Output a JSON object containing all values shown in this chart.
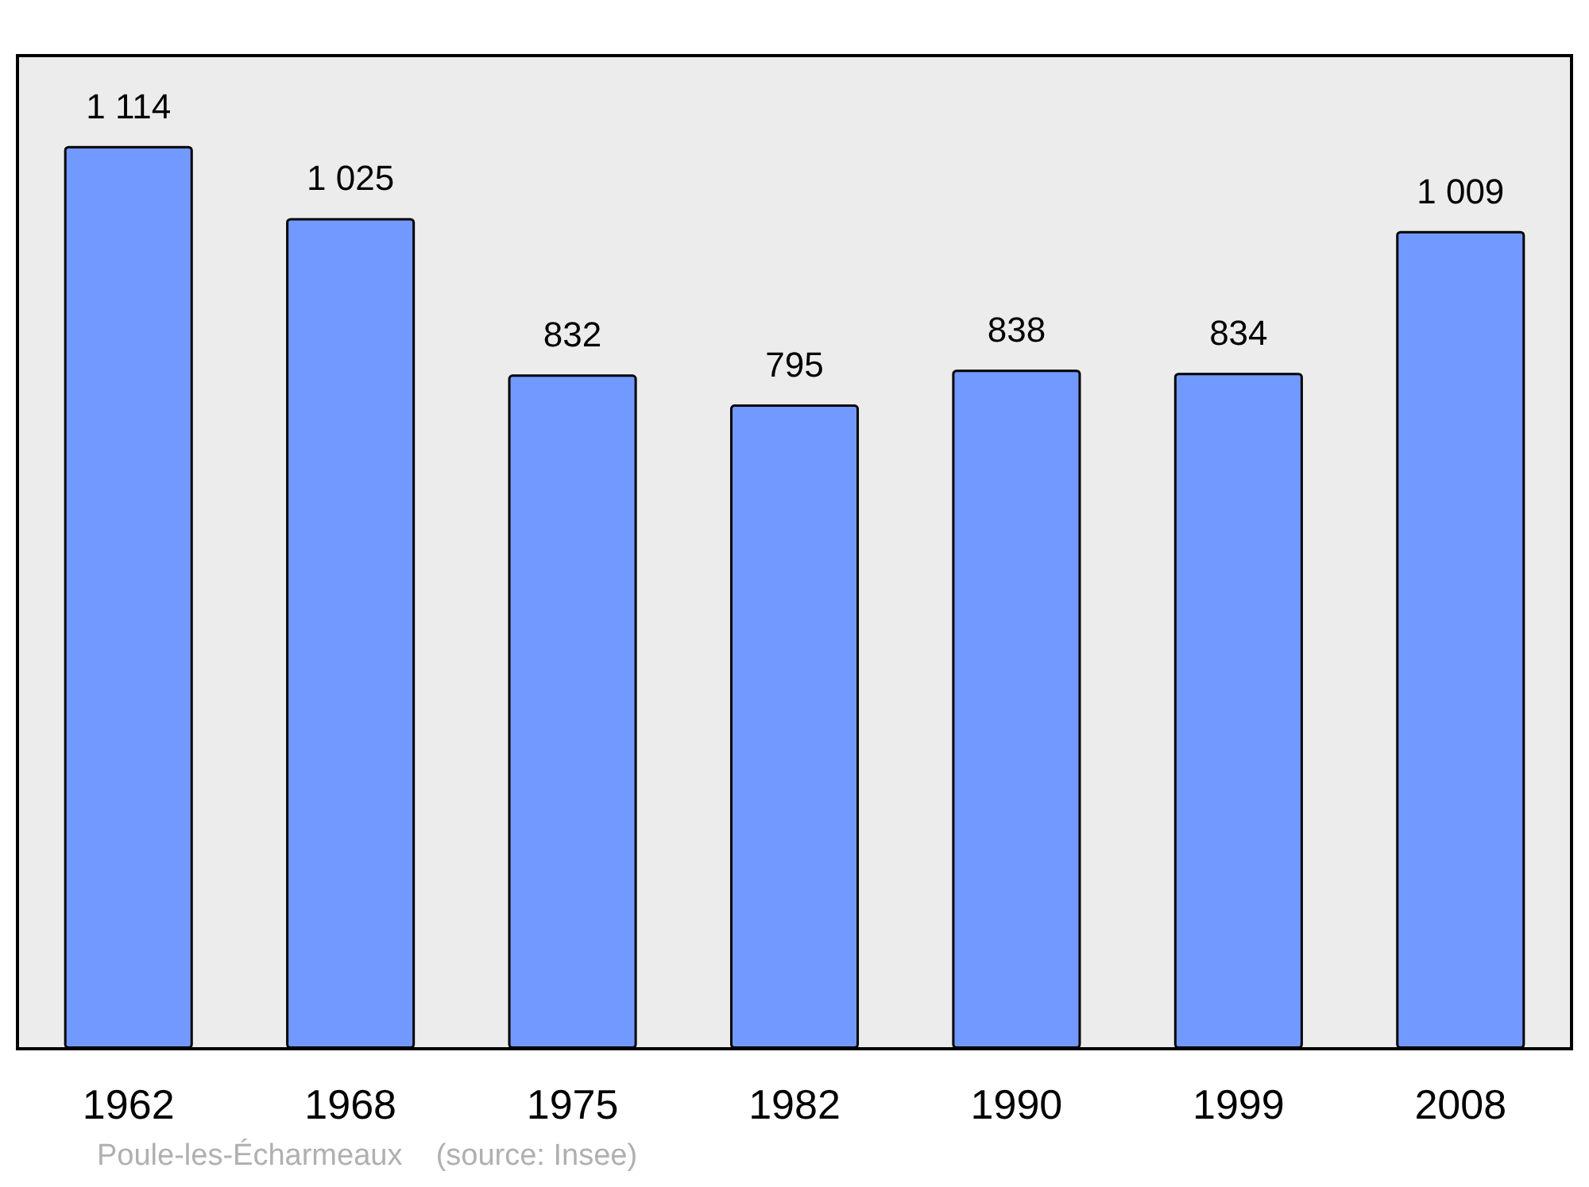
{
  "chart_data": {
    "type": "bar",
    "categories": [
      "1962",
      "1968",
      "1975",
      "1982",
      "1990",
      "1999",
      "2008"
    ],
    "values": [
      1114,
      1025,
      832,
      795,
      838,
      834,
      1009
    ],
    "value_labels": [
      "1 114",
      "1 025",
      "832",
      "795",
      "838",
      "834",
      "1 009"
    ],
    "color": "#7299ff",
    "annotations": [
      "Poule-les-Écharmeaux    (source: Insee)"
    ]
  }
}
